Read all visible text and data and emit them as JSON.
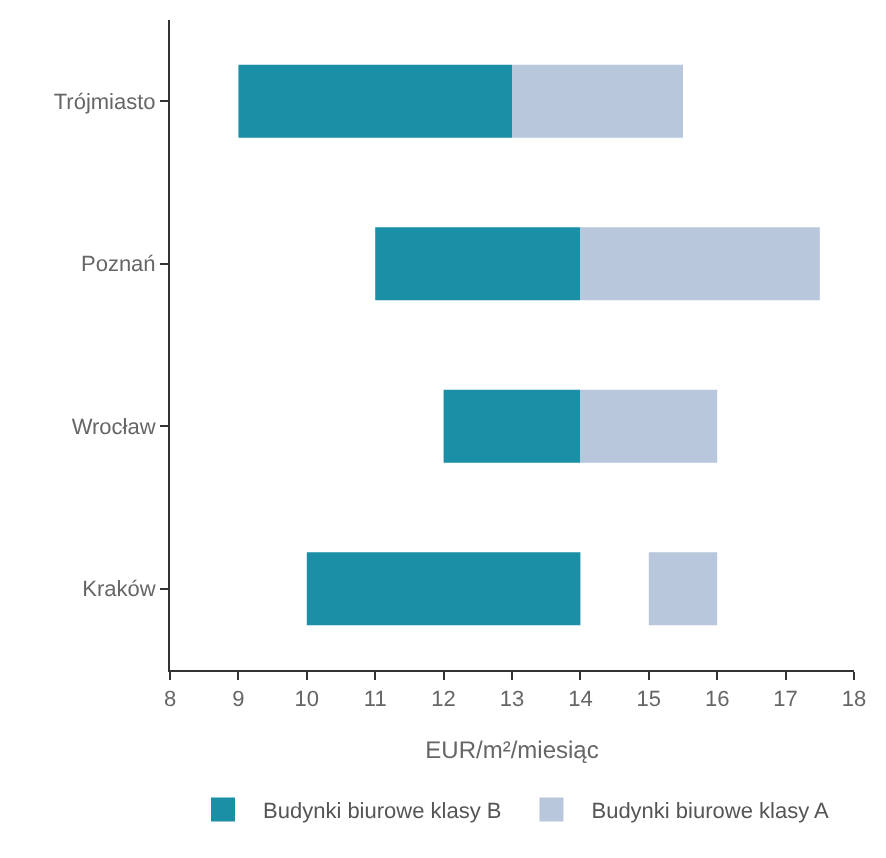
{
  "chart_data": {
    "type": "bar",
    "orientation": "horizontal",
    "xlabel": "EUR/m²/miesiąc",
    "categories": [
      "Trójmiasto",
      "Poznań",
      "Wrocław",
      "Kraków"
    ],
    "series": [
      {
        "name": "Budynki biurowe klasy B",
        "color": "#1b8fa6",
        "base": [
          9,
          11,
          12,
          10
        ],
        "values": [
          4,
          3,
          2,
          4
        ]
      },
      {
        "name": "Budynki biurowe klasy A",
        "color": "#b8c7db",
        "base": [
          13,
          14,
          14,
          15
        ],
        "values": [
          2.5,
          3.5,
          2,
          1
        ]
      }
    ],
    "xlim": [
      8,
      18
    ],
    "xticks": [
      8,
      9,
      10,
      11,
      12,
      13,
      14,
      15,
      16,
      17,
      18
    ],
    "legend": "bottom"
  }
}
